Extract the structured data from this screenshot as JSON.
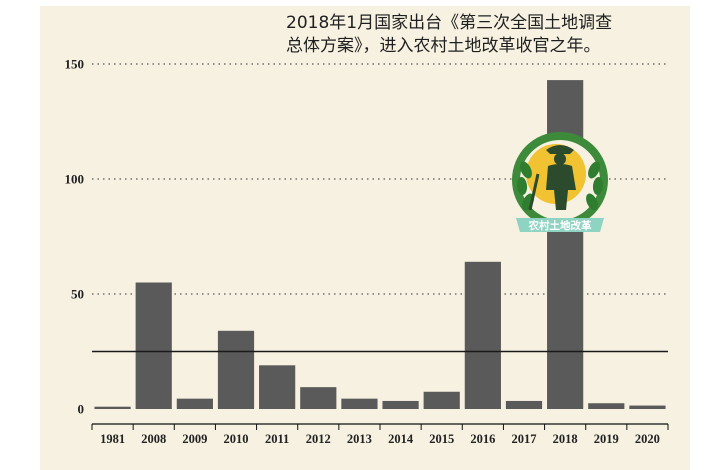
{
  "annotation_text": "2018年1月国家出台《第三次全国土地调查\n总体方案》，进入农村土地改革收官之年。",
  "badge_label": "农村土地改革",
  "chart_data": {
    "type": "bar",
    "title": "",
    "xlabel": "",
    "ylabel": "",
    "categories": [
      "1981",
      "2008",
      "2009",
      "2010",
      "2011",
      "2012",
      "2013",
      "2014",
      "2015",
      "2016",
      "2017",
      "2018",
      "2019",
      "2020"
    ],
    "values": [
      1,
      55,
      4.5,
      34,
      19,
      9.5,
      4.5,
      3.5,
      7.5,
      64,
      3.5,
      143,
      2.5,
      1.5
    ],
    "ylim": [
      0,
      150
    ],
    "yticks": [
      0,
      50,
      100,
      150
    ],
    "reference_line": 25,
    "grid": "dotted-horizontal",
    "colors": {
      "bar": "#5a5a5a",
      "background": "#f6f1e1",
      "badge_green": "#3c8a3a",
      "badge_ribbon": "#8fd3c2",
      "badge_sun": "#f1c232"
    }
  }
}
